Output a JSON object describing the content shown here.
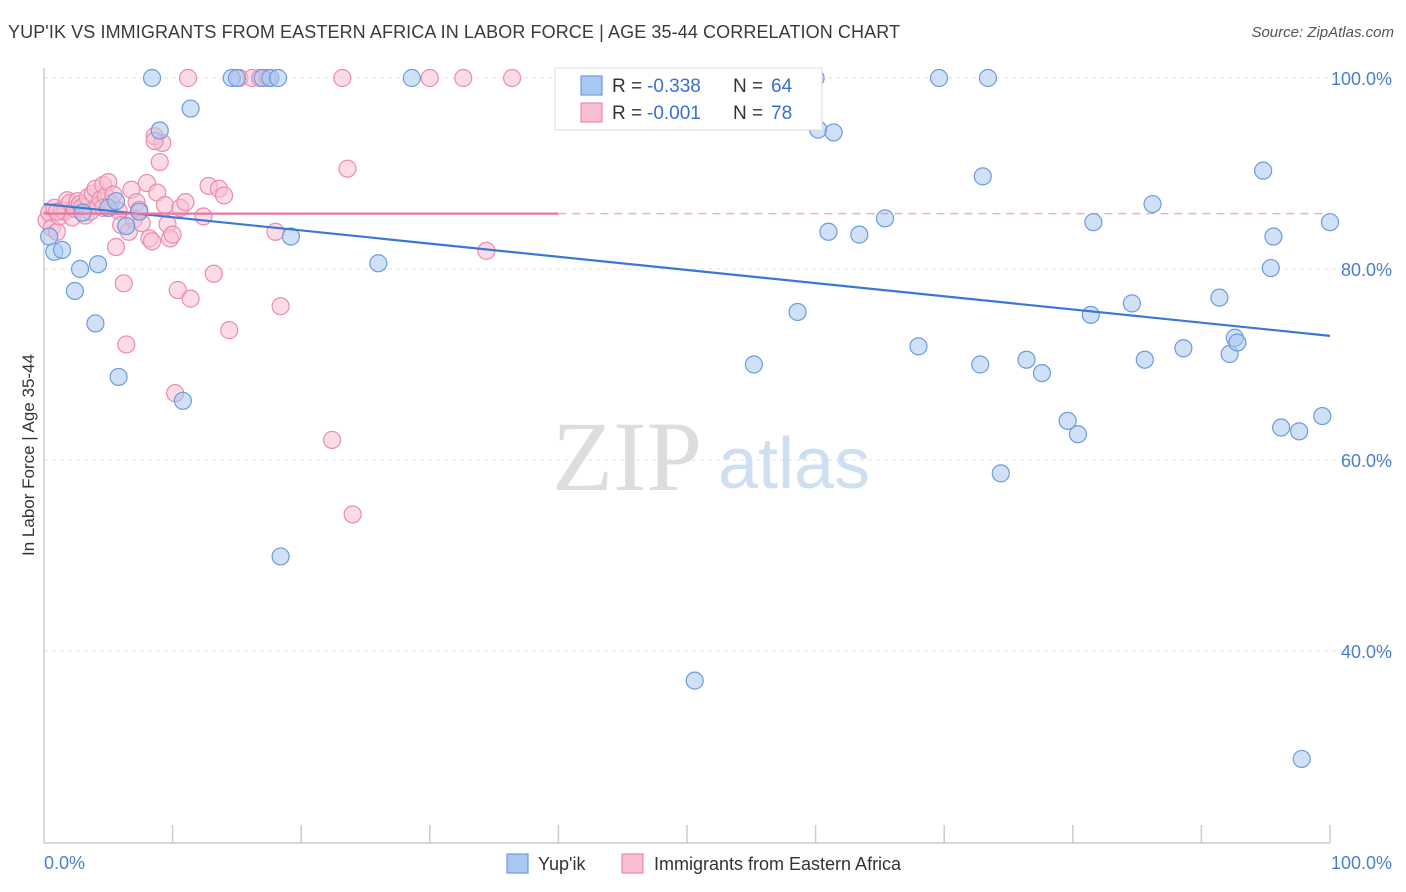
{
  "header": {
    "title": "YUP'IK VS IMMIGRANTS FROM EASTERN AFRICA IN LABOR FORCE | AGE 35-44 CORRELATION CHART",
    "source": "Source: ZipAtlas.com"
  },
  "watermark": {
    "zip": "ZIP",
    "atlas": "atlas"
  },
  "chart_data": {
    "type": "scatter",
    "title": "YUP'IK VS IMMIGRANTS FROM EASTERN AFRICA IN LABOR FORCE | AGE 35-44 CORRELATION CHART",
    "ylabel": "In Labor Force | Age 35-44",
    "xlabel": "",
    "xlim": [
      0,
      100
    ],
    "ylim": [
      20,
      104
    ],
    "x_tick_labels": [
      "0.0%",
      "100.0%"
    ],
    "y_ticks": [
      40,
      60,
      80,
      100
    ],
    "y_tick_labels": [
      "40.0%",
      "60.0%",
      "80.0%",
      "100.0%"
    ],
    "grid": "horizontal dashed",
    "legend_position": "top-center",
    "stats": [
      {
        "r_label": "R =",
        "r": "-0.338",
        "n_label": "N =",
        "n": "64"
      },
      {
        "r_label": "R =",
        "r": "-0.001",
        "n_label": "N =",
        "n": "78"
      }
    ],
    "series": [
      {
        "name": "Yup'ik",
        "color": "#a9c8ef",
        "stroke": "#6b9be0",
        "trend": {
          "x": [
            0,
            100
          ],
          "y": [
            86.8,
            73.0
          ],
          "color": "#3a78d4"
        },
        "points": [
          [
            0.4,
            83.4
          ],
          [
            0.8,
            81.8
          ],
          [
            1.4,
            82.0
          ],
          [
            2.4,
            77.7
          ],
          [
            2.8,
            80.0
          ],
          [
            3.0,
            85.9
          ],
          [
            4.0,
            74.3
          ],
          [
            4.2,
            80.5
          ],
          [
            5.0,
            86.4
          ],
          [
            5.6,
            87.1
          ],
          [
            5.8,
            68.7
          ],
          [
            6.4,
            84.5
          ],
          [
            7.4,
            86.0
          ],
          [
            8.4,
            100.0
          ],
          [
            9.0,
            94.5
          ],
          [
            10.8,
            66.2
          ],
          [
            11.4,
            96.8
          ],
          [
            14.6,
            100.0
          ],
          [
            15.0,
            100.0
          ],
          [
            17.0,
            100.0
          ],
          [
            17.6,
            100.0
          ],
          [
            18.2,
            100.0
          ],
          [
            18.4,
            49.9
          ],
          [
            19.2,
            83.4
          ],
          [
            26.0,
            80.6
          ],
          [
            28.6,
            100.0
          ],
          [
            44.6,
            100.0
          ],
          [
            50.6,
            36.9
          ],
          [
            55.2,
            70.0
          ],
          [
            58.6,
            75.5
          ],
          [
            60.0,
            100.0
          ],
          [
            60.2,
            94.6
          ],
          [
            61.0,
            83.9
          ],
          [
            61.4,
            94.3
          ],
          [
            63.4,
            83.6
          ],
          [
            65.4,
            85.3
          ],
          [
            68.0,
            71.9
          ],
          [
            69.6,
            100.0
          ],
          [
            72.8,
            70.0
          ],
          [
            73.0,
            89.7
          ],
          [
            73.4,
            100.0
          ],
          [
            74.4,
            58.6
          ],
          [
            76.4,
            70.5
          ],
          [
            77.6,
            69.1
          ],
          [
            79.6,
            64.1
          ],
          [
            80.4,
            62.7
          ],
          [
            81.4,
            75.2
          ],
          [
            81.6,
            84.9
          ],
          [
            84.6,
            76.4
          ],
          [
            85.6,
            70.5
          ],
          [
            86.2,
            86.8
          ],
          [
            88.6,
            71.7
          ],
          [
            91.4,
            77.0
          ],
          [
            92.2,
            71.1
          ],
          [
            92.6,
            72.8
          ],
          [
            92.8,
            72.3
          ],
          [
            94.8,
            90.3
          ],
          [
            95.4,
            80.1
          ],
          [
            95.6,
            83.4
          ],
          [
            96.2,
            63.4
          ],
          [
            97.6,
            63.0
          ],
          [
            97.8,
            28.7
          ],
          [
            99.4,
            64.6
          ],
          [
            100.0,
            84.9
          ]
        ]
      },
      {
        "name": "Immigrants from Eastern Africa",
        "color": "#f7bfd1",
        "stroke": "#ec8bab",
        "trend": {
          "x": [
            0,
            40
          ],
          "y": [
            85.8,
            85.8
          ],
          "dash_to_x": 100,
          "color": "#e8769f"
        },
        "points": [
          [
            0.2,
            85.1
          ],
          [
            0.4,
            85.9
          ],
          [
            0.6,
            84.3
          ],
          [
            0.8,
            86.4
          ],
          [
            1.0,
            83.9
          ],
          [
            1.2,
            85.5
          ],
          [
            1.4,
            86.2
          ],
          [
            1.6,
            86.0
          ],
          [
            1.8,
            87.2
          ],
          [
            2.0,
            86.9
          ],
          [
            2.2,
            85.4
          ],
          [
            2.4,
            86.3
          ],
          [
            2.6,
            87.1
          ],
          [
            2.8,
            86.8
          ],
          [
            3.0,
            86.5
          ],
          [
            3.2,
            85.6
          ],
          [
            3.4,
            87.5
          ],
          [
            3.6,
            86.0
          ],
          [
            3.8,
            87.9
          ],
          [
            4.0,
            88.4
          ],
          [
            4.2,
            86.6
          ],
          [
            4.4,
            87.3
          ],
          [
            4.6,
            88.8
          ],
          [
            4.8,
            87.6
          ],
          [
            5.0,
            89.1
          ],
          [
            5.2,
            86.9
          ],
          [
            5.4,
            87.8
          ],
          [
            5.6,
            82.3
          ],
          [
            5.8,
            86.1
          ],
          [
            6.0,
            84.6
          ],
          [
            6.2,
            78.5
          ],
          [
            6.4,
            72.1
          ],
          [
            6.6,
            83.9
          ],
          [
            6.8,
            88.3
          ],
          [
            7.0,
            85.2
          ],
          [
            7.2,
            87.0
          ],
          [
            7.4,
            86.2
          ],
          [
            7.6,
            84.8
          ],
          [
            8.0,
            89.0
          ],
          [
            8.2,
            83.2
          ],
          [
            8.4,
            82.9
          ],
          [
            8.6,
            93.9
          ],
          [
            8.8,
            88.0
          ],
          [
            9.0,
            91.2
          ],
          [
            9.2,
            93.2
          ],
          [
            9.4,
            86.7
          ],
          [
            9.6,
            84.7
          ],
          [
            9.8,
            83.2
          ],
          [
            10.0,
            83.6
          ],
          [
            10.2,
            67.0
          ],
          [
            10.4,
            77.8
          ],
          [
            10.6,
            86.4
          ],
          [
            11.0,
            87.0
          ],
          [
            11.2,
            100.0
          ],
          [
            11.4,
            76.9
          ],
          [
            12.4,
            85.5
          ],
          [
            12.8,
            88.7
          ],
          [
            13.2,
            79.5
          ],
          [
            13.6,
            88.4
          ],
          [
            14.0,
            87.7
          ],
          [
            14.4,
            73.6
          ],
          [
            15.2,
            100.0
          ],
          [
            16.2,
            100.0
          ],
          [
            16.8,
            100.0
          ],
          [
            17.4,
            100.0
          ],
          [
            18.0,
            83.9
          ],
          [
            18.4,
            76.1
          ],
          [
            22.4,
            62.1
          ],
          [
            23.2,
            100.0
          ],
          [
            23.6,
            90.5
          ],
          [
            24.0,
            54.3
          ],
          [
            30.0,
            100.0
          ],
          [
            32.6,
            100.0
          ],
          [
            34.4,
            81.9
          ],
          [
            36.4,
            100.0
          ],
          [
            8.6,
            93.4
          ],
          [
            4.6,
            86.4
          ],
          [
            1.0,
            86.0
          ]
        ]
      }
    ]
  },
  "legend": {
    "series_labels": [
      "Yup'ik",
      "Immigrants from Eastern Africa"
    ]
  }
}
